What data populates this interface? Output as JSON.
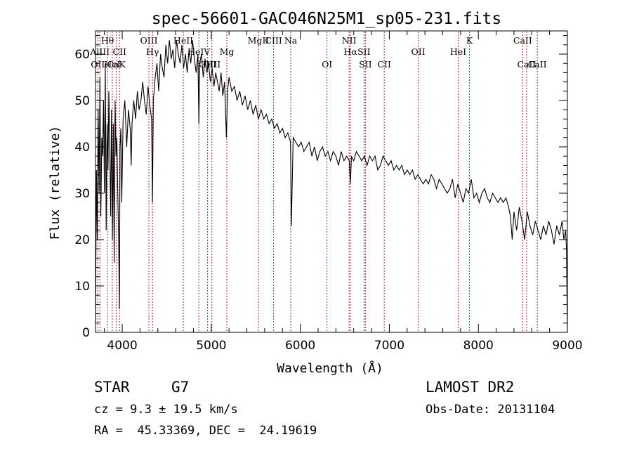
{
  "chart_data": {
    "type": "line",
    "title": "spec-56601-GAC046N25M1_sp05-231.fits",
    "xlabel": "Wavelength (Å)",
    "ylabel": "Flux (relative)",
    "xlim": [
      3700,
      9000
    ],
    "ylim": [
      0,
      65
    ],
    "x_ticks": [
      4000,
      5000,
      6000,
      7000,
      8000,
      9000
    ],
    "y_ticks": [
      0,
      10,
      20,
      30,
      40,
      50,
      60
    ],
    "grid": false,
    "line_color": "#000000",
    "marker_color": "#a52a2a",
    "series": [
      {
        "x": [
          3700,
          3710,
          3720,
          3730,
          3740,
          3750,
          3760,
          3770,
          3780,
          3790,
          3800,
          3810,
          3820,
          3830,
          3840,
          3850,
          3860,
          3870,
          3880,
          3890,
          3900,
          3910,
          3920,
          3930,
          3940,
          3950,
          3960,
          3968,
          3975,
          3985,
          3995,
          4010,
          4030,
          4050,
          4070,
          4090,
          4101,
          4110,
          4130,
          4150,
          4170,
          4190,
          4210,
          4230,
          4250,
          4270,
          4290,
          4310,
          4330,
          4340,
          4350,
          4370,
          4390,
          4410,
          4430,
          4450,
          4470,
          4490,
          4510,
          4530,
          4550,
          4570,
          4590,
          4610,
          4630,
          4650,
          4670,
          4690,
          4710,
          4730,
          4750,
          4770,
          4790,
          4810,
          4830,
          4850,
          4861,
          4870,
          4890,
          4910,
          4930,
          4950,
          4970,
          4990,
          5010,
          5030,
          5050,
          5070,
          5090,
          5110,
          5130,
          5150,
          5170,
          5183,
          5200,
          5230,
          5260,
          5290,
          5320,
          5350,
          5380,
          5410,
          5440,
          5470,
          5500,
          5530,
          5560,
          5590,
          5620,
          5650,
          5680,
          5710,
          5740,
          5770,
          5800,
          5830,
          5860,
          5890,
          5895,
          5900,
          5920,
          5950,
          5980,
          6010,
          6040,
          6070,
          6100,
          6130,
          6160,
          6190,
          6220,
          6250,
          6280,
          6310,
          6340,
          6370,
          6400,
          6430,
          6460,
          6490,
          6520,
          6550,
          6563,
          6575,
          6600,
          6630,
          6660,
          6690,
          6720,
          6750,
          6780,
          6810,
          6840,
          6870,
          6900,
          6930,
          6960,
          6990,
          7020,
          7050,
          7080,
          7110,
          7140,
          7170,
          7200,
          7230,
          7260,
          7290,
          7320,
          7350,
          7380,
          7410,
          7440,
          7470,
          7500,
          7530,
          7560,
          7590,
          7620,
          7650,
          7680,
          7710,
          7740,
          7770,
          7800,
          7830,
          7860,
          7890,
          7920,
          7950,
          7980,
          8010,
          8040,
          8070,
          8100,
          8130,
          8160,
          8190,
          8220,
          8250,
          8280,
          8310,
          8340,
          8360,
          8380,
          8400,
          8430,
          8460,
          8490,
          8520,
          8550,
          8580,
          8610,
          8640,
          8670,
          8700,
          8730,
          8760,
          8790,
          8820,
          8850,
          8880,
          8910,
          8940,
          8960,
          8980,
          8990,
          9000
        ],
        "y": [
          2,
          35,
          20,
          48,
          30,
          55,
          25,
          42,
          38,
          50,
          30,
          58,
          22,
          45,
          35,
          52,
          40,
          25,
          48,
          20,
          45,
          15,
          50,
          38,
          42,
          30,
          20,
          5,
          40,
          44,
          28,
          46,
          50,
          40,
          48,
          44,
          36,
          45,
          50,
          46,
          52,
          48,
          50,
          54,
          50,
          47,
          53,
          49,
          46,
          28,
          50,
          55,
          58,
          52,
          60,
          57,
          55,
          62,
          58,
          63,
          59,
          61,
          57,
          63,
          60,
          58,
          62,
          57,
          60,
          56,
          61,
          58,
          63,
          59,
          56,
          60,
          45,
          58,
          60,
          55,
          59,
          56,
          58,
          54,
          57,
          53,
          56,
          54,
          52,
          56,
          51,
          54,
          42,
          52,
          55,
          52,
          53,
          50,
          52,
          49,
          51,
          48,
          50,
          47,
          49,
          46,
          48,
          46,
          47,
          45,
          46,
          44,
          45,
          43,
          44,
          42,
          43,
          41,
          32,
          23,
          42,
          41,
          40,
          41,
          39,
          40,
          41,
          38,
          40,
          37,
          39,
          40,
          38,
          39,
          37,
          39,
          38,
          36,
          39,
          37,
          38,
          37,
          32,
          38,
          37,
          39,
          38,
          37,
          38,
          36,
          38,
          37,
          38,
          35,
          36,
          38,
          37,
          36,
          37,
          35,
          36,
          35,
          36,
          34,
          35,
          34,
          35,
          33,
          34,
          33,
          32,
          33,
          32,
          34,
          33,
          31,
          33,
          32,
          31,
          30,
          31,
          33,
          29,
          32,
          30,
          28,
          31,
          30,
          33,
          29,
          30,
          28,
          30,
          31,
          29,
          28,
          30,
          29,
          28,
          29,
          28,
          29,
          27,
          25,
          20,
          26,
          22,
          27,
          24,
          20,
          26,
          23,
          21,
          24,
          22,
          20,
          23,
          21,
          24,
          22,
          19,
          23,
          21,
          24,
          20,
          22,
          18,
          0
        ]
      }
    ],
    "line_markers": [
      {
        "wavelength": 3726,
        "label": "OII",
        "row": "low2"
      },
      {
        "wavelength": 3750,
        "label": "AlIII",
        "row": "low1"
      },
      {
        "wavelength": 3835,
        "label": "Hθ",
        "row": "top"
      },
      {
        "wavelength": 3889,
        "label": "HeI",
        "row": "low2"
      },
      {
        "wavelength": 3934,
        "label": "CaK",
        "row": "low2"
      },
      {
        "wavelength": 3970,
        "label": "CII",
        "row": "low1"
      },
      {
        "wavelength": 4300,
        "label": "OIII",
        "row": "top"
      },
      {
        "wavelength": 4340,
        "label": "Hγ",
        "row": "low1"
      },
      {
        "wavelength": 4686,
        "label": "HeII",
        "row": "top"
      },
      {
        "wavelength": 4861,
        "label": "HeIV",
        "row": "low1"
      },
      {
        "wavelength": 4959,
        "label": "OIII",
        "row": "low2"
      },
      {
        "wavelength": 5007,
        "label": "OIII",
        "row": "low2"
      },
      {
        "wavelength": 5175,
        "label": "Mg",
        "row": "low1"
      },
      {
        "wavelength": 5530,
        "label": "MgII",
        "row": "top"
      },
      {
        "wavelength": 5700,
        "label": "CIII",
        "row": "top"
      },
      {
        "wavelength": 5893,
        "label": "Na",
        "row": "top"
      },
      {
        "wavelength": 6300,
        "label": "OI",
        "row": "low2"
      },
      {
        "wavelength": 6548,
        "label": "NII",
        "row": "top"
      },
      {
        "wavelength": 6563,
        "label": "Hα",
        "row": "low1"
      },
      {
        "wavelength": 6716,
        "label": "SII",
        "row": "low1"
      },
      {
        "wavelength": 6731,
        "label": "SII",
        "row": "low2"
      },
      {
        "wavelength": 6943,
        "label": "CII",
        "row": "low2"
      },
      {
        "wavelength": 7325,
        "label": "OII",
        "row": "low1"
      },
      {
        "wavelength": 7774,
        "label": "HeI",
        "row": "low1"
      },
      {
        "wavelength": 7900,
        "label": "K",
        "row": "top"
      },
      {
        "wavelength": 8498,
        "label": "CaII",
        "row": "top"
      },
      {
        "wavelength": 8542,
        "label": "CaII",
        "row": "low2"
      },
      {
        "wavelength": 8662,
        "label": "CaII",
        "row": "low2"
      }
    ]
  },
  "info": {
    "class_text": "STAR",
    "subclass_text": "G7",
    "cz_text": "cz = 9.3 ± 19.5 km/s",
    "radec_text": "RA =  45.33369, DEC =  24.19619",
    "survey_text": "LAMOST DR2",
    "obsdate_text": "Obs-Date: 20131104"
  }
}
